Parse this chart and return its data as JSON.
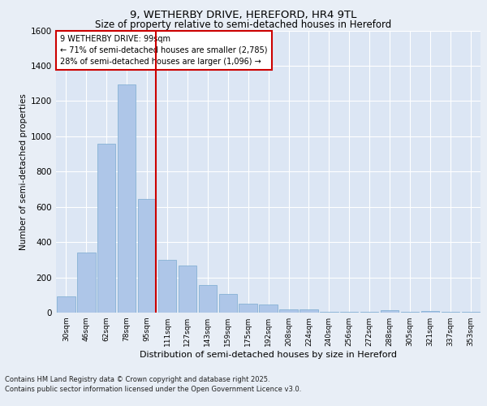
{
  "title_line1": "9, WETHERBY DRIVE, HEREFORD, HR4 9TL",
  "title_line2": "Size of property relative to semi-detached houses in Hereford",
  "xlabel": "Distribution of semi-detached houses by size in Hereford",
  "ylabel": "Number of semi-detached properties",
  "annotation_title": "9 WETHERBY DRIVE: 99sqm",
  "annotation_line1": "← 71% of semi-detached houses are smaller (2,785)",
  "annotation_line2": "28% of semi-detached houses are larger (1,096) →",
  "footer_line1": "Contains HM Land Registry data © Crown copyright and database right 2025.",
  "footer_line2": "Contains public sector information licensed under the Open Government Licence v3.0.",
  "bar_color": "#aec6e8",
  "bar_edge_color": "#7aaad0",
  "highlight_line_color": "#cc0000",
  "annotation_box_color": "#cc0000",
  "background_color": "#e8eef6",
  "plot_background_color": "#dce6f4",
  "categories": [
    "30sqm",
    "46sqm",
    "62sqm",
    "78sqm",
    "95sqm",
    "111sqm",
    "127sqm",
    "143sqm",
    "159sqm",
    "175sqm",
    "192sqm",
    "208sqm",
    "224sqm",
    "240sqm",
    "256sqm",
    "272sqm",
    "288sqm",
    "305sqm",
    "321sqm",
    "337sqm",
    "353sqm"
  ],
  "values": [
    90,
    340,
    960,
    1295,
    645,
    300,
    265,
    155,
    105,
    50,
    45,
    20,
    20,
    5,
    5,
    5,
    15,
    5,
    10,
    5,
    5
  ],
  "property_bin_index": 4,
  "ylim": [
    0,
    1600
  ],
  "yticks": [
    0,
    200,
    400,
    600,
    800,
    1000,
    1200,
    1400,
    1600
  ]
}
